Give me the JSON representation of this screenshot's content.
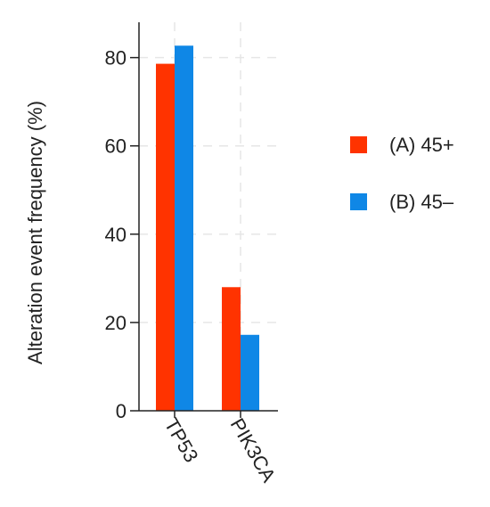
{
  "chart_data": {
    "type": "bar",
    "ylabel": "Alteration event frequency (%)",
    "categories": [
      "TP53",
      "PIK3CA"
    ],
    "series": [
      {
        "name": "(A) 45+",
        "values": [
          78.6,
          28.0
        ],
        "color": "#FF3300"
      },
      {
        "name": "(B) 45–",
        "values": [
          82.7,
          17.2
        ],
        "color": "#0F87E6"
      }
    ],
    "ylim": [
      0,
      88
    ],
    "yticks": [
      0,
      20,
      40,
      60,
      80
    ],
    "grid": true,
    "legend_position": "right"
  }
}
